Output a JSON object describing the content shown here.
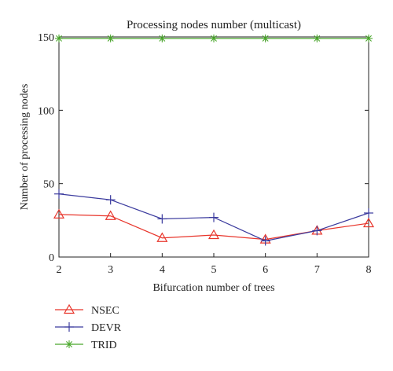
{
  "chart_data": {
    "type": "line",
    "title": "Processing nodes number (multicast)",
    "xlabel": "Bifurcation number of trees",
    "ylabel": "Number of processing nodes",
    "x": [
      2,
      3,
      4,
      5,
      6,
      7,
      8
    ],
    "xlim": [
      2,
      8
    ],
    "ylim": [
      0,
      150
    ],
    "xticks": [
      "2",
      "3",
      "4",
      "5",
      "6",
      "7",
      "8"
    ],
    "yticks": [
      0,
      50,
      100,
      150
    ],
    "ytick_labels": [
      "0",
      "50",
      "100",
      "150"
    ],
    "grid": false,
    "legend_position": "bottom-left, below plot",
    "series": [
      {
        "name": "NSEC",
        "marker": "triangle",
        "color": "#e8352b",
        "values": [
          29,
          28,
          13,
          15,
          12,
          18,
          23
        ]
      },
      {
        "name": "DEVR",
        "marker": "plus",
        "color": "#3b3b9e",
        "values": [
          43,
          39,
          26,
          27,
          11,
          18,
          30
        ]
      },
      {
        "name": "TRID",
        "marker": "asterisk",
        "color": "#4aa82c",
        "values": [
          149,
          149,
          149,
          149,
          149,
          149,
          149
        ]
      }
    ]
  }
}
